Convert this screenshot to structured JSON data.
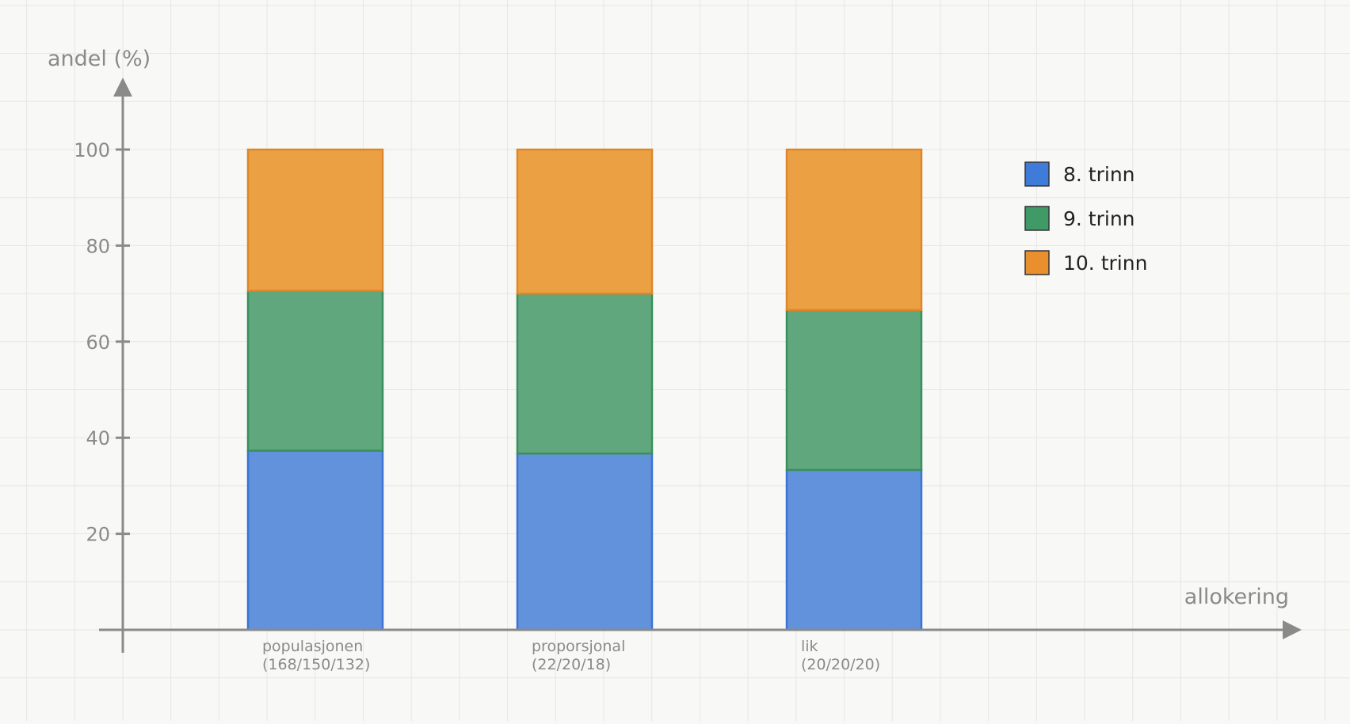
{
  "chart_data": {
    "type": "bar",
    "stacked": true,
    "title": "",
    "xlabel": "allokering",
    "ylabel": "andel (%)",
    "ylim": [
      0,
      120
    ],
    "yticks": [
      20,
      40,
      60,
      80,
      100
    ],
    "grid": true,
    "legend_position": "top-right",
    "categories": [
      [
        "populasjonen",
        "(168/150/132)"
      ],
      [
        "proporsjonal",
        "(22/20/18)"
      ],
      [
        "lik",
        "(20/20/20)"
      ]
    ],
    "series": [
      {
        "name": "8. trinn",
        "values": [
          37.3,
          36.7,
          33.3
        ],
        "color": "#6292dc",
        "stroke": "#3a74d4",
        "swatch": "#3f7bd9"
      },
      {
        "name": "9. trinn",
        "values": [
          33.3,
          33.3,
          33.3
        ],
        "color": "#60a77e",
        "stroke": "#3a8f5d",
        "swatch": "#3f9a68"
      },
      {
        "name": "10. trinn",
        "values": [
          29.4,
          30.0,
          33.4
        ],
        "color": "#eba044",
        "stroke": "#e0862a",
        "swatch": "#ea8f2d"
      }
    ]
  },
  "colors": {
    "background": "#f8f8f6",
    "grid": "#e6e6e3",
    "axis": "#8a8a8a",
    "legend_text": "#222222"
  }
}
